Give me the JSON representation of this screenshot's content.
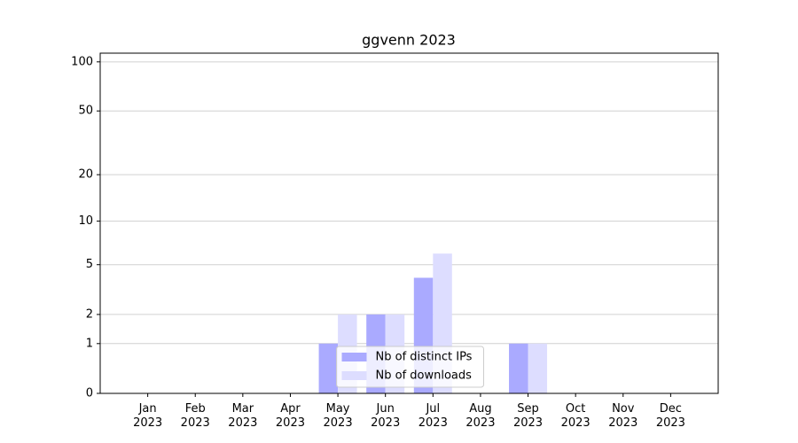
{
  "chart_data": {
    "type": "bar",
    "title": "ggvenn 2023",
    "categories": [
      "Jan 2023",
      "Feb 2023",
      "Mar 2023",
      "Apr 2023",
      "May 2023",
      "Jun 2023",
      "Jul 2023",
      "Aug 2023",
      "Sep 2023",
      "Oct 2023",
      "Nov 2023",
      "Dec 2023"
    ],
    "series": [
      {
        "name": "Nb of distinct IPs",
        "color": "#aaaaff",
        "values": [
          0,
          0,
          0,
          0,
          1,
          2,
          4,
          0,
          1,
          0,
          0,
          0
        ]
      },
      {
        "name": "Nb of downloads",
        "color": "#ddddff",
        "values": [
          0,
          0,
          0,
          0,
          2,
          2,
          6,
          0,
          1,
          0,
          0,
          0
        ]
      }
    ],
    "yscale": "log1p",
    "ylim": [
      0,
      113
    ],
    "yticks": [
      0,
      1,
      2,
      5,
      10,
      20,
      50,
      100
    ],
    "grid": true,
    "legend": "lower center"
  }
}
